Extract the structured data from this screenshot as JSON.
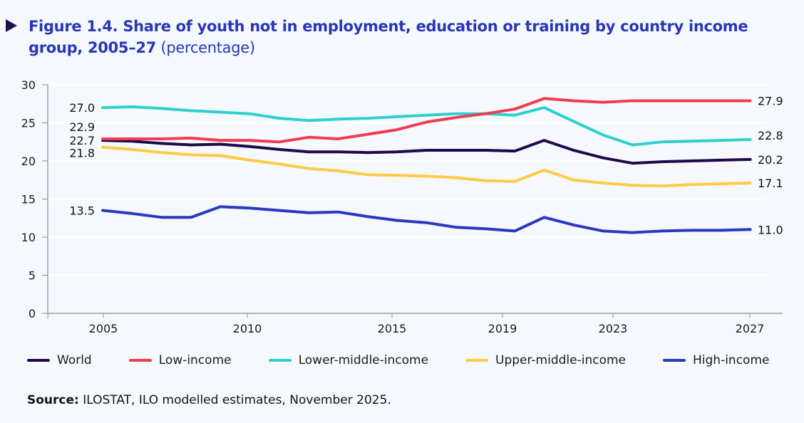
{
  "header": {
    "title_bold": "Figure 1.4. Share of youth not in employment, education or training by country income group, 2005–27",
    "title_suffix": " (percentage)"
  },
  "source": {
    "label": "Source:",
    "text": " ILOSTAT, ILO modelled estimates, November 2025."
  },
  "chart_data": {
    "type": "line",
    "title": "Figure 1.4. Share of youth not in employment, education or training by country income group, 2005–27 (percentage)",
    "xlabel": "",
    "ylabel": "",
    "ylim": [
      0,
      30
    ],
    "yticks": [
      0,
      5,
      10,
      15,
      20,
      25,
      30
    ],
    "xticks": [
      "2005",
      "2010",
      "2015",
      "2019",
      "2023",
      "2027"
    ],
    "grid": true,
    "legend_position": "bottom",
    "x": [
      2005,
      2006,
      2007,
      2008,
      2009,
      2010,
      2011,
      2012,
      2013,
      2014,
      2015,
      2016,
      2017,
      2018,
      2019,
      2020,
      2021,
      2022,
      2023,
      2024,
      2025,
      2026,
      2027
    ],
    "series": [
      {
        "name": "World",
        "color": "#1e0a4a",
        "values": [
          22.7,
          22.6,
          22.3,
          22.1,
          22.2,
          21.9,
          21.5,
          21.2,
          21.2,
          21.1,
          21.2,
          21.4,
          21.4,
          21.4,
          21.3,
          22.7,
          21.4,
          20.4,
          19.7,
          19.9,
          20.0,
          20.1,
          20.2
        ],
        "start_label": "22.7",
        "end_label": "20.2"
      },
      {
        "name": "Low-income",
        "color": "#f23c50",
        "values": [
          22.9,
          22.9,
          22.9,
          23.0,
          22.7,
          22.7,
          22.5,
          23.1,
          22.9,
          23.5,
          24.1,
          25.1,
          25.7,
          26.2,
          26.8,
          28.2,
          27.9,
          27.7,
          27.9,
          27.9,
          27.9,
          27.9,
          27.9
        ],
        "start_label": "22.9",
        "end_label": "27.9"
      },
      {
        "name": "Lower-middle-income",
        "color": "#2dd0cf",
        "values": [
          27.0,
          27.1,
          26.9,
          26.6,
          26.4,
          26.2,
          25.6,
          25.3,
          25.5,
          25.6,
          25.8,
          26.0,
          26.2,
          26.2,
          26.0,
          27.0,
          25.2,
          23.4,
          22.1,
          22.5,
          22.6,
          22.7,
          22.8
        ],
        "start_label": "27.0",
        "end_label": "22.8"
      },
      {
        "name": "Upper-middle-income",
        "color": "#ffca45",
        "values": [
          21.8,
          21.5,
          21.1,
          20.8,
          20.7,
          20.1,
          19.6,
          19.0,
          18.7,
          18.2,
          18.1,
          18.0,
          17.8,
          17.4,
          17.3,
          18.8,
          17.5,
          17.1,
          16.8,
          16.7,
          16.9,
          17.0,
          17.1
        ],
        "start_label": "21.8",
        "end_label": "17.1"
      },
      {
        "name": "High-income",
        "color": "#2a3ac0",
        "values": [
          13.5,
          13.1,
          12.6,
          12.6,
          14.0,
          13.8,
          13.5,
          13.2,
          13.3,
          12.7,
          12.2,
          11.9,
          11.3,
          11.1,
          10.8,
          12.6,
          11.6,
          10.8,
          10.6,
          10.8,
          10.9,
          10.9,
          11.0
        ],
        "start_label": "13.5",
        "end_label": "11.0"
      }
    ]
  }
}
